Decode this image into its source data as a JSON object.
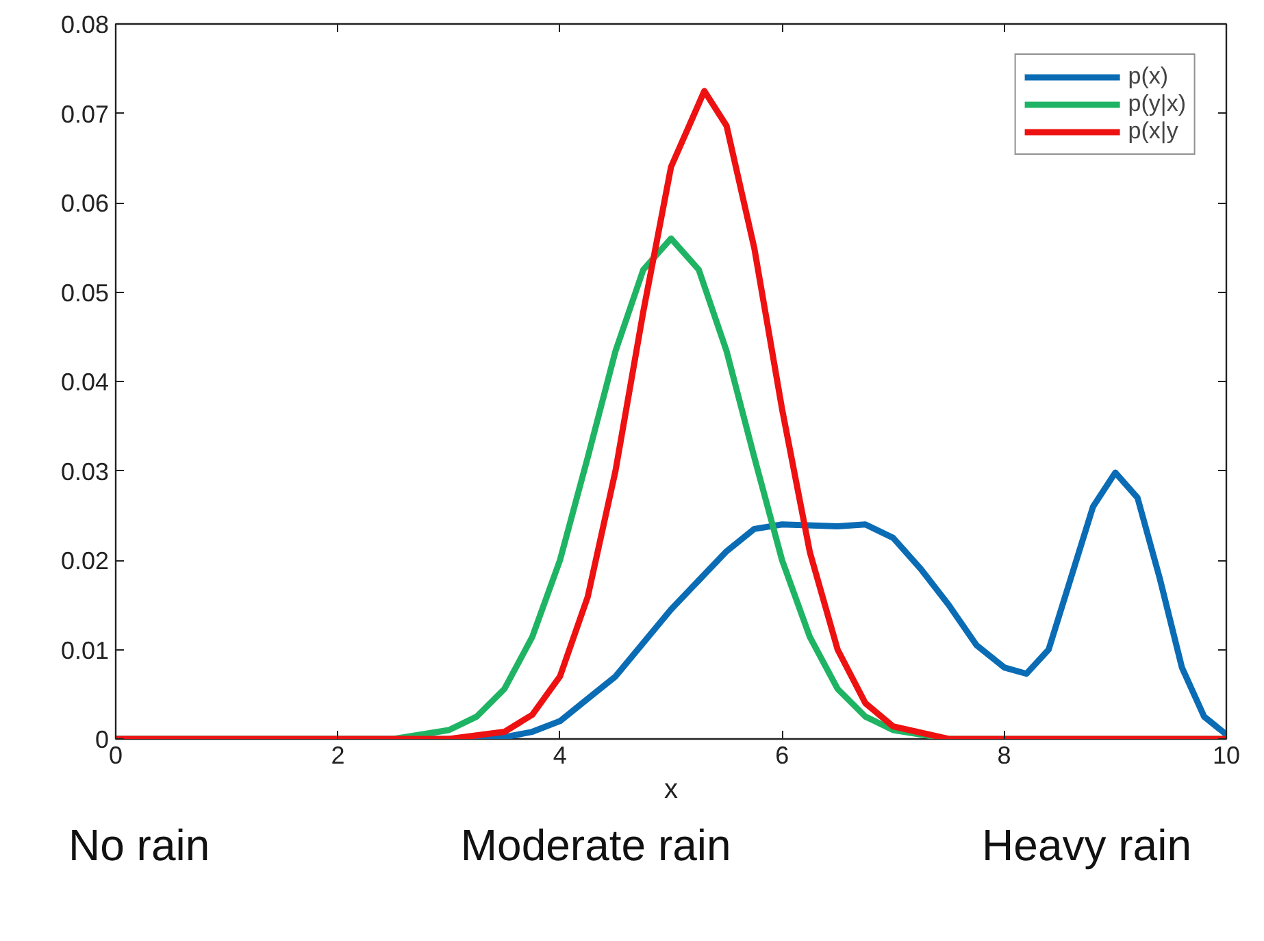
{
  "chart_data": {
    "type": "line",
    "xlabel": "x",
    "annotations": [
      "No rain",
      "Moderate rain",
      "Heavy rain"
    ],
    "xlim": [
      0,
      10
    ],
    "xticks": [
      0,
      2,
      4,
      6,
      8,
      10
    ],
    "ylim": [
      0,
      0.08
    ],
    "yticks": [
      0,
      0.01,
      0.02,
      0.03,
      0.04,
      0.05,
      0.06,
      0.07,
      0.08
    ],
    "grid": false,
    "legend": "top right",
    "line_style": "solid",
    "series": [
      {
        "name": "p(x)",
        "color": "#0a6cb4",
        "x": [
          0,
          2,
          3,
          3.5,
          3.75,
          4,
          4.5,
          5,
          5.5,
          5.75,
          6,
          6.5,
          6.75,
          7,
          7.25,
          7.5,
          7.75,
          8,
          8.2,
          8.4,
          8.6,
          8.8,
          9,
          9.2,
          9.4,
          9.6,
          9.8,
          10
        ],
        "values": [
          0,
          0,
          0,
          0.0002,
          0.0008,
          0.002,
          0.007,
          0.0145,
          0.021,
          0.0235,
          0.024,
          0.0238,
          0.024,
          0.0225,
          0.019,
          0.015,
          0.0105,
          0.008,
          0.0073,
          0.01,
          0.018,
          0.026,
          0.0298,
          0.027,
          0.018,
          0.008,
          0.0025,
          0.0005
        ]
      },
      {
        "name": "p(y|x)",
        "color": "#1fb464",
        "x": [
          0,
          2,
          2.5,
          3,
          3.25,
          3.5,
          3.75,
          4,
          4.25,
          4.5,
          4.75,
          5,
          5.25,
          5.5,
          5.75,
          6,
          6.25,
          6.5,
          6.75,
          7,
          7.5,
          10
        ],
        "values": [
          0,
          0,
          0,
          0.001,
          0.0025,
          0.0056,
          0.0114,
          0.02,
          0.0315,
          0.0434,
          0.0525,
          0.056,
          0.0525,
          0.0434,
          0.0315,
          0.02,
          0.0114,
          0.0056,
          0.0025,
          0.001,
          0,
          0
        ]
      },
      {
        "name": "p(x|y",
        "color": "#ee1111",
        "x": [
          0,
          2,
          3,
          3.5,
          3.75,
          4,
          4.25,
          4.5,
          4.75,
          5,
          5.3,
          5.5,
          5.75,
          6,
          6.25,
          6.5,
          6.75,
          7,
          7.5,
          10
        ],
        "values": [
          0,
          0,
          0,
          0.0008,
          0.0027,
          0.007,
          0.0159,
          0.03,
          0.0478,
          0.064,
          0.0725,
          0.0686,
          0.0549,
          0.0369,
          0.0209,
          0.01,
          0.004,
          0.0014,
          0,
          0
        ]
      }
    ]
  }
}
